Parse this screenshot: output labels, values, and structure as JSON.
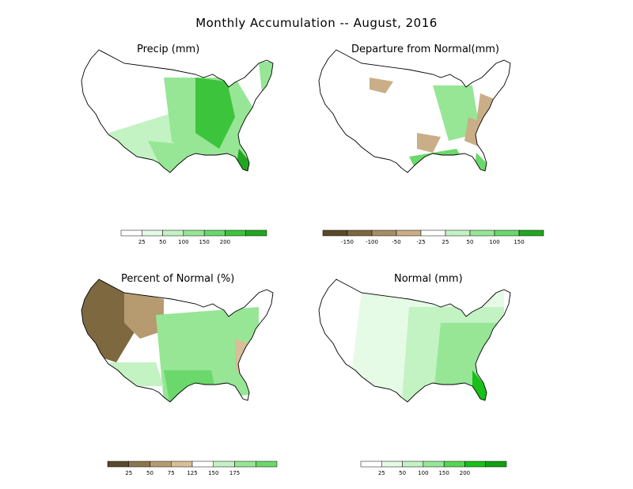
{
  "figure": {
    "title": "Monthly Accumulation -- August, 2016"
  },
  "panels": {
    "precip": {
      "title": "Precip (mm)",
      "colorbar": {
        "ticks": [
          "25",
          "50",
          "100",
          "150",
          "200"
        ],
        "colors": [
          "#ffffff",
          "#e6fbe6",
          "#c3f2c3",
          "#96e696",
          "#6bd86b",
          "#3cc43c",
          "#21a821"
        ]
      }
    },
    "departure": {
      "title": "Departure from Normal(mm)",
      "colorbar": {
        "ticks": [
          "-150",
          "-100",
          "-50",
          "-25",
          "25",
          "50",
          "100",
          "150"
        ],
        "colors": [
          "#5a4a2a",
          "#7d6840",
          "#a78d65",
          "#c9ae87",
          "#ffffff",
          "#c3f2c3",
          "#96e696",
          "#6bd86b",
          "#21a821"
        ]
      }
    },
    "percent": {
      "title": "Percent of Normal (%)",
      "colorbar": {
        "ticks": [
          "25",
          "50",
          "75",
          "125",
          "150",
          "175"
        ],
        "colors": [
          "#5a4a2a",
          "#8c7650",
          "#b69a70",
          "#d8bf97",
          "#ffffff",
          "#c3f2c3",
          "#96e696",
          "#6bd86b"
        ]
      }
    },
    "normal": {
      "title": "Normal (mm)",
      "colorbar": {
        "ticks": [
          "25",
          "50",
          "100",
          "150",
          "200"
        ],
        "colors": [
          "#ffffff",
          "#e6fbe6",
          "#c3f2c3",
          "#96e696",
          "#55d555",
          "#18c018",
          "#10a010"
        ]
      }
    }
  }
}
